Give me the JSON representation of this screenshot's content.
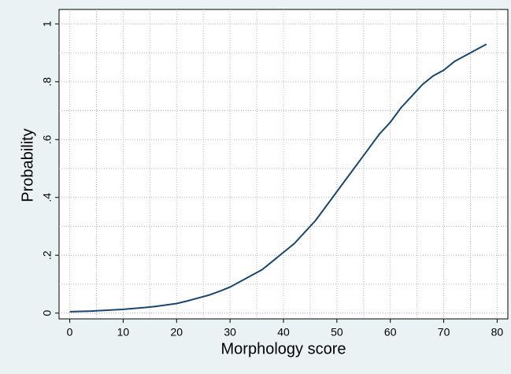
{
  "chart_data": {
    "type": "line",
    "x_label": "Morphology score",
    "y_label": "Probability",
    "x": [
      0,
      2,
      4,
      6,
      8,
      10,
      12,
      14,
      16,
      18,
      20,
      22,
      24,
      26,
      28,
      30,
      32,
      34,
      36,
      38,
      40,
      42,
      44,
      46,
      48,
      50,
      52,
      54,
      56,
      58,
      60,
      62,
      64,
      66,
      68,
      70,
      72,
      74,
      76,
      78
    ],
    "series": [
      {
        "color": "#1a476f",
        "values": [
          0.005,
          0.006,
          0.007,
          0.009,
          0.011,
          0.013,
          0.016,
          0.019,
          0.023,
          0.028,
          0.033,
          0.042,
          0.052,
          0.062,
          0.075,
          0.09,
          0.11,
          0.13,
          0.15,
          0.18,
          0.21,
          0.24,
          0.28,
          0.32,
          0.37,
          0.42,
          0.47,
          0.52,
          0.57,
          0.62,
          0.66,
          0.71,
          0.75,
          0.79,
          0.82,
          0.84,
          0.87,
          0.89,
          0.91,
          0.93
        ]
      }
    ],
    "xlim": [
      -2,
      82
    ],
    "ylim": [
      -0.02,
      1.05
    ],
    "xticks": [
      0,
      10,
      20,
      30,
      40,
      50,
      60,
      70,
      80
    ],
    "yticks": [
      0,
      {
        "value": 0.2,
        "label": ".2"
      },
      {
        "value": 0.4,
        "label": ".4"
      },
      {
        "value": 0.6,
        "label": ".6"
      },
      {
        "value": 0.8,
        "label": ".8"
      },
      1
    ],
    "x_minor_grid": [
      5,
      15,
      25,
      35,
      45,
      55,
      65,
      75
    ],
    "y_minor_grid": [
      0.1,
      0.3,
      0.5,
      0.7,
      0.9
    ],
    "grid": true
  }
}
